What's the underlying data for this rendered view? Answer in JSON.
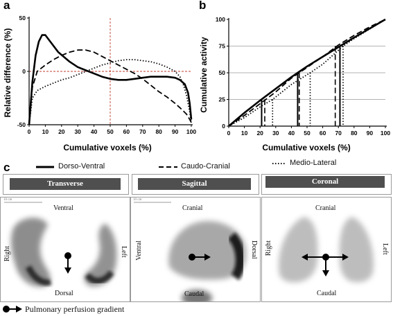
{
  "figure": {
    "panel_a_letter": "a",
    "panel_b_letter": "b",
    "panel_c_letter": "c"
  },
  "chart_data": [
    {
      "type": "line",
      "panel": "a",
      "xlabel": "Cumulative voxels (%)",
      "ylabel": "Relative difference (%)",
      "xlim": [
        0,
        100
      ],
      "ylim": [
        -50,
        50
      ],
      "x_ticks": [
        "0",
        "10",
        "20",
        "30",
        "40",
        "50",
        "60",
        "70",
        "80",
        "90",
        "100"
      ],
      "y_ticks": [
        "-50",
        "0",
        "50"
      ],
      "reference_lines": {
        "x": 50,
        "y": 0
      },
      "series": [
        {
          "name": "Dorso-Ventral",
          "style": "solid",
          "points": [
            [
              0,
              -50
            ],
            [
              2,
              -10
            ],
            [
              4,
              15
            ],
            [
              6,
              28
            ],
            [
              8,
              34
            ],
            [
              10,
              34
            ],
            [
              13,
              28
            ],
            [
              18,
              18
            ],
            [
              25,
              9
            ],
            [
              30,
              4
            ],
            [
              35,
              1
            ],
            [
              40,
              -2
            ],
            [
              45,
              -5
            ],
            [
              50,
              -7
            ],
            [
              55,
              -8
            ],
            [
              60,
              -8
            ],
            [
              65,
              -7
            ],
            [
              70,
              -6
            ],
            [
              75,
              -5
            ],
            [
              80,
              -5
            ],
            [
              85,
              -5
            ],
            [
              90,
              -6
            ],
            [
              93,
              -8
            ],
            [
              96,
              -12
            ],
            [
              98,
              -20
            ],
            [
              99,
              -30
            ],
            [
              100,
              -45
            ]
          ]
        },
        {
          "name": "Caudo-Cranial",
          "style": "dashed",
          "points": [
            [
              0,
              -50
            ],
            [
              2,
              -15
            ],
            [
              5,
              0
            ],
            [
              10,
              6
            ],
            [
              15,
              11
            ],
            [
              20,
              15
            ],
            [
              25,
              18
            ],
            [
              30,
              20
            ],
            [
              35,
              20
            ],
            [
              40,
              18
            ],
            [
              45,
              14
            ],
            [
              50,
              10
            ],
            [
              55,
              6
            ],
            [
              60,
              2
            ],
            [
              65,
              -2
            ],
            [
              70,
              -7
            ],
            [
              75,
              -13
            ],
            [
              80,
              -19
            ],
            [
              85,
              -24
            ],
            [
              90,
              -30
            ],
            [
              93,
              -34
            ],
            [
              95,
              -37
            ],
            [
              97,
              -40
            ],
            [
              99,
              -45
            ],
            [
              100,
              -48
            ]
          ]
        },
        {
          "name": "Medio-Lateral",
          "style": "dotted",
          "points": [
            [
              0,
              -50
            ],
            [
              2,
              -25
            ],
            [
              5,
              -18
            ],
            [
              10,
              -14
            ],
            [
              15,
              -11
            ],
            [
              20,
              -8
            ],
            [
              25,
              -6
            ],
            [
              30,
              -3
            ],
            [
              35,
              0
            ],
            [
              40,
              3
            ],
            [
              45,
              6
            ],
            [
              50,
              8
            ],
            [
              55,
              10
            ],
            [
              60,
              11
            ],
            [
              65,
              11
            ],
            [
              70,
              10
            ],
            [
              75,
              9
            ],
            [
              80,
              7
            ],
            [
              85,
              4
            ],
            [
              90,
              0
            ],
            [
              93,
              -5
            ],
            [
              95,
              -12
            ],
            [
              97,
              -22
            ],
            [
              99,
              -38
            ],
            [
              100,
              -48
            ]
          ]
        }
      ]
    },
    {
      "type": "line",
      "panel": "b",
      "xlabel": "Cumulative voxels (%)",
      "ylabel": "Cumulative activity",
      "xlim": [
        0,
        100
      ],
      "ylim": [
        0,
        100
      ],
      "x_ticks": [
        "0",
        "10",
        "20",
        "30",
        "40",
        "50",
        "60",
        "70",
        "80",
        "90",
        "100"
      ],
      "y_ticks": [
        "0",
        "25",
        "50",
        "75",
        "100"
      ],
      "grid_y": [
        25,
        50,
        75
      ],
      "series": [
        {
          "name": "Dorso-Ventral",
          "style": "solid",
          "points": [
            [
              0,
              0
            ],
            [
              10,
              12.5
            ],
            [
              20,
              24
            ],
            [
              30,
              35
            ],
            [
              40,
              46
            ],
            [
              45,
              51
            ],
            [
              50,
              56
            ],
            [
              60,
              65
            ],
            [
              70,
              74
            ],
            [
              80,
              83
            ],
            [
              90,
              91.5
            ],
            [
              100,
              100
            ]
          ]
        },
        {
          "name": "Caudo-Cranial",
          "style": "dashed",
          "points": [
            [
              0,
              0
            ],
            [
              10,
              10
            ],
            [
              20,
              21
            ],
            [
              30,
              32
            ],
            [
              40,
              45
            ],
            [
              45,
              50
            ],
            [
              50,
              55
            ],
            [
              60,
              65
            ],
            [
              70,
              76
            ],
            [
              80,
              85
            ],
            [
              90,
              93
            ],
            [
              100,
              100
            ]
          ]
        },
        {
          "name": "Medio-Lateral",
          "style": "dotted",
          "points": [
            [
              0,
              0
            ],
            [
              10,
              8
            ],
            [
              20,
              18
            ],
            [
              28,
              25
            ],
            [
              40,
              39
            ],
            [
              52,
              50
            ],
            [
              60,
              58
            ],
            [
              73,
              75
            ],
            [
              80,
              82
            ],
            [
              90,
              91
            ],
            [
              100,
              100
            ]
          ]
        }
      ],
      "drop_lines": [
        {
          "style": "solid",
          "x": 21,
          "y": 25
        },
        {
          "style": "solid",
          "x": 44,
          "y": 50
        },
        {
          "style": "solid",
          "x": 71,
          "y": 75
        },
        {
          "style": "dashed",
          "x": 23,
          "y": 25
        },
        {
          "style": "dashed",
          "x": 45,
          "y": 50
        },
        {
          "style": "dashed",
          "x": 68,
          "y": 75
        },
        {
          "style": "dotted",
          "x": 28,
          "y": 25
        },
        {
          "style": "dotted",
          "x": 52,
          "y": 50
        },
        {
          "style": "dotted",
          "x": 73,
          "y": 75
        }
      ]
    }
  ],
  "legend": {
    "dorso_ventral": "Dorso-Ventral",
    "caudo_cranial": "Caudo-Cranial",
    "medio_lateral": "Medio-Lateral"
  },
  "views": {
    "transverse": {
      "header": "Transverse",
      "scale": "10 cm",
      "top": "Ventral",
      "bottom": "Dorsal",
      "left": "Right",
      "right": "Left"
    },
    "sagittal": {
      "header": "Sagittal",
      "scale": "10 cm",
      "top": "Cranial",
      "bottom": "Caudal",
      "left": "Ventral",
      "right": "Dorsal"
    },
    "coronal": {
      "header": "Coronal",
      "top": "Cranial",
      "bottom": "Caudal",
      "left": "Right",
      "right": "Left"
    }
  },
  "gradient_legend": "Pulmonary perfusion gradient",
  "colors": {
    "reference_line": "#c0392b",
    "grid": "#9a9a9a",
    "header_bg": "#4f4f4f"
  }
}
